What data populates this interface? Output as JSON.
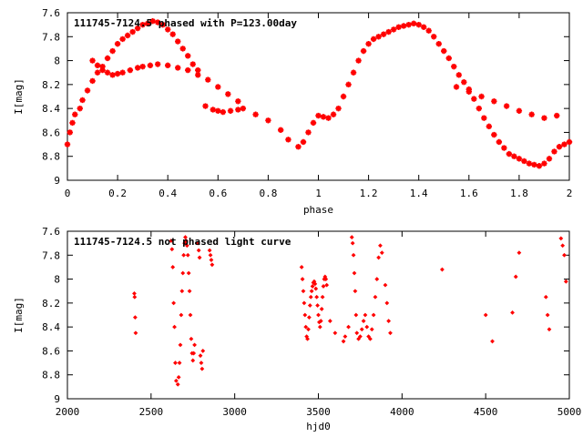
{
  "chart_data": [
    {
      "type": "scatter",
      "title": "111745-7124.5 phased with P=123.00day",
      "xlabel": "phase",
      "ylabel": "I[mag]",
      "xlim": [
        0,
        2
      ],
      "ylim": [
        9,
        7.6
      ],
      "y_inverted": true,
      "grid": false,
      "marker": "star",
      "color": "#ff0000",
      "x_ticks": [
        "0",
        "0.2",
        "0.4",
        "0.6",
        "0.8",
        "1",
        "1.2",
        "1.4",
        "1.6",
        "1.8",
        "2"
      ],
      "y_ticks": [
        "7.6",
        "7.8",
        "8",
        "8.2",
        "8.4",
        "8.6",
        "8.8",
        "9"
      ],
      "x": [
        0.0,
        0.01,
        0.02,
        0.03,
        0.05,
        0.06,
        0.08,
        0.1,
        0.12,
        0.14,
        0.16,
        0.18,
        0.2,
        0.22,
        0.24,
        0.26,
        0.28,
        0.3,
        0.32,
        0.34,
        0.36,
        0.38,
        0.4,
        0.42,
        0.44,
        0.46,
        0.48,
        0.5,
        0.52,
        0.1,
        0.12,
        0.14,
        0.16,
        0.18,
        0.2,
        0.22,
        0.25,
        0.28,
        0.3,
        0.33,
        0.36,
        0.4,
        0.44,
        0.48,
        0.52,
        0.56,
        0.6,
        0.64,
        0.68,
        0.55,
        0.58,
        0.6,
        0.62,
        0.65,
        0.68,
        0.7,
        0.75,
        0.8,
        0.85,
        0.88,
        0.92,
        0.94,
        0.96,
        0.98,
        1.0,
        1.02,
        1.04,
        1.06,
        1.08,
        1.1,
        1.12,
        1.14,
        1.16,
        1.18,
        1.2,
        1.22,
        1.24,
        1.26,
        1.28,
        1.3,
        1.32,
        1.34,
        1.36,
        1.38,
        1.4,
        1.42,
        1.44,
        1.46,
        1.48,
        1.5,
        1.52,
        1.54,
        1.56,
        1.58,
        1.6,
        1.62,
        1.64,
        1.66,
        1.68,
        1.7,
        1.72,
        1.74,
        1.76,
        1.78,
        1.8,
        1.82,
        1.84,
        1.86,
        1.88,
        1.9,
        1.92,
        1.94,
        1.96,
        1.98,
        2.0,
        1.55,
        1.6,
        1.65,
        1.7,
        1.75,
        1.8,
        1.85,
        1.9,
        1.95
      ],
      "y": [
        8.7,
        8.6,
        8.52,
        8.45,
        8.4,
        8.33,
        8.25,
        8.17,
        8.1,
        8.05,
        7.98,
        7.92,
        7.86,
        7.82,
        7.79,
        7.76,
        7.73,
        7.7,
        7.69,
        7.67,
        7.68,
        7.7,
        7.74,
        7.78,
        7.84,
        7.9,
        7.96,
        8.03,
        8.08,
        8.0,
        8.04,
        8.08,
        8.1,
        8.12,
        8.11,
        8.1,
        8.08,
        8.06,
        8.05,
        8.04,
        8.03,
        8.04,
        8.06,
        8.08,
        8.12,
        8.16,
        8.22,
        8.28,
        8.34,
        8.38,
        8.41,
        8.42,
        8.43,
        8.42,
        8.41,
        8.4,
        8.45,
        8.5,
        8.58,
        8.66,
        8.72,
        8.68,
        8.6,
        8.52,
        8.46,
        8.47,
        8.48,
        8.45,
        8.4,
        8.3,
        8.2,
        8.1,
        8.0,
        7.92,
        7.86,
        7.82,
        7.8,
        7.78,
        7.76,
        7.74,
        7.72,
        7.71,
        7.7,
        7.69,
        7.7,
        7.72,
        7.75,
        7.8,
        7.86,
        7.92,
        7.98,
        8.05,
        8.12,
        8.18,
        8.24,
        8.32,
        8.4,
        8.48,
        8.55,
        8.62,
        8.68,
        8.73,
        8.78,
        8.8,
        8.82,
        8.84,
        8.86,
        8.87,
        8.88,
        8.86,
        8.82,
        8.76,
        8.72,
        8.7,
        8.68,
        8.22,
        8.26,
        8.3,
        8.34,
        8.38,
        8.42,
        8.45,
        8.48,
        8.46
      ]
    },
    {
      "type": "scatter",
      "title": "111745-7124.5 not phased light curve",
      "xlabel": "hjd0",
      "ylabel": "I[mag]",
      "xlim": [
        2000,
        5000
      ],
      "ylim": [
        9,
        7.6
      ],
      "y_inverted": true,
      "grid": false,
      "marker": "diamond",
      "color": "#ff0000",
      "x_ticks": [
        "2000",
        "2500",
        "3000",
        "3500",
        "4000",
        "4500",
        "5000"
      ],
      "y_ticks": [
        "7.6",
        "7.8",
        "8",
        "8.2",
        "8.4",
        "8.6",
        "8.8",
        "9"
      ],
      "x": [
        2400,
        2402,
        2405,
        2408,
        2620,
        2625,
        2630,
        2635,
        2640,
        2645,
        2650,
        2660,
        2665,
        2670,
        2675,
        2680,
        2685,
        2690,
        2695,
        2700,
        2705,
        2710,
        2715,
        2720,
        2725,
        2730,
        2735,
        2740,
        2745,
        2750,
        2755,
        2760,
        2780,
        2785,
        2790,
        2795,
        2800,
        2805,
        2810,
        2850,
        2855,
        2860,
        2865,
        3400,
        3405,
        3410,
        3415,
        3420,
        3425,
        3430,
        3435,
        3440,
        3445,
        3450,
        3455,
        3460,
        3465,
        3470,
        3475,
        3480,
        3485,
        3490,
        3495,
        3500,
        3505,
        3510,
        3515,
        3520,
        3525,
        3530,
        3535,
        3540,
        3545,
        3550,
        3570,
        3600,
        3650,
        3660,
        3680,
        3700,
        3705,
        3710,
        3715,
        3720,
        3725,
        3730,
        3740,
        3750,
        3760,
        3770,
        3780,
        3790,
        3800,
        3810,
        3820,
        3830,
        3840,
        3850,
        3860,
        3870,
        3880,
        3900,
        3910,
        3920,
        3930,
        4240,
        4500,
        4540,
        4660,
        4680,
        4700,
        4860,
        4870,
        4880,
        4950,
        4960,
        4970,
        4980
      ],
      "y": [
        8.12,
        8.15,
        8.32,
        8.45,
        7.68,
        7.75,
        7.9,
        8.2,
        8.4,
        8.7,
        8.85,
        8.88,
        8.82,
        8.7,
        8.55,
        8.3,
        8.1,
        7.95,
        7.8,
        7.7,
        7.65,
        7.68,
        7.72,
        7.8,
        7.95,
        8.1,
        8.3,
        8.5,
        8.62,
        8.68,
        8.62,
        8.55,
        7.7,
        7.76,
        7.82,
        8.64,
        8.7,
        8.75,
        8.6,
        7.76,
        7.8,
        7.84,
        7.88,
        7.9,
        8.0,
        8.1,
        8.2,
        8.3,
        8.4,
        8.48,
        8.5,
        8.42,
        8.32,
        8.22,
        8.15,
        8.1,
        8.06,
        8.03,
        8.02,
        8.04,
        8.08,
        8.15,
        8.22,
        8.3,
        8.36,
        8.4,
        8.35,
        8.25,
        8.15,
        8.06,
        8.0,
        7.98,
        8.0,
        8.05,
        8.35,
        8.45,
        8.52,
        8.48,
        8.4,
        7.65,
        7.7,
        7.8,
        7.95,
        8.1,
        8.3,
        8.45,
        8.5,
        8.48,
        8.42,
        8.35,
        8.3,
        8.4,
        8.48,
        8.5,
        8.42,
        8.3,
        8.15,
        8.0,
        7.82,
        7.72,
        7.78,
        8.05,
        8.2,
        8.35,
        8.45,
        7.92,
        8.3,
        8.52,
        8.28,
        7.98,
        7.78,
        8.15,
        8.3,
        8.42,
        7.66,
        7.72,
        7.8,
        8.02
      ]
    }
  ]
}
